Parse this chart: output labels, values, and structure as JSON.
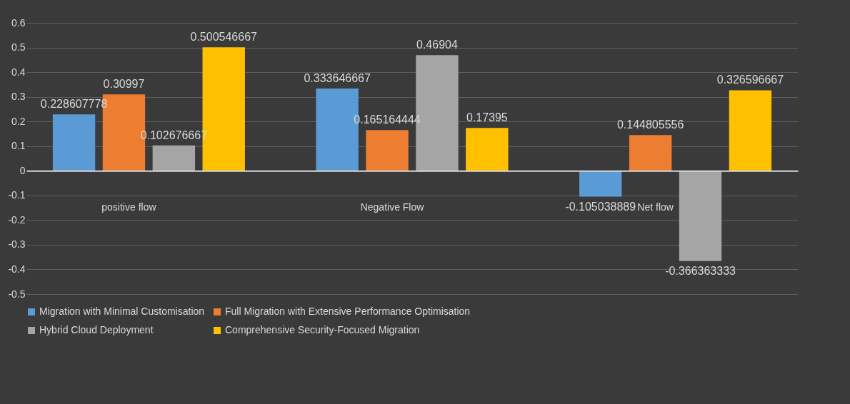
{
  "chart_data": {
    "type": "bar",
    "categories": [
      "positive flow",
      "Negative Flow",
      "Net flow"
    ],
    "series": [
      {
        "name": "Migration with Minimal Customisation",
        "color": "#5b9bd5",
        "values": [
          0.228607778,
          0.333646667,
          -0.105038889
        ]
      },
      {
        "name": "Full Migration with Extensive Performance Optimisation",
        "color": "#ed7d31",
        "values": [
          0.30997,
          0.165164444,
          0.144805556
        ]
      },
      {
        "name": "Hybrid Cloud Deployment",
        "color": "#a5a5a5",
        "values": [
          0.102676667,
          0.46904,
          -0.366363333
        ]
      },
      {
        "name": "Comprehensive Security-Focused Migration",
        "color": "#ffc000",
        "values": [
          0.500546667,
          0.17395,
          0.326596667
        ]
      }
    ],
    "ylim": [
      -0.5,
      0.6
    ],
    "yticks": [
      -0.5,
      -0.4,
      -0.3,
      -0.2,
      -0.1,
      0,
      0.1,
      0.2,
      0.3,
      0.4,
      0.5,
      0.6
    ],
    "grid": true,
    "legend": "bottom",
    "data_labels": true
  }
}
